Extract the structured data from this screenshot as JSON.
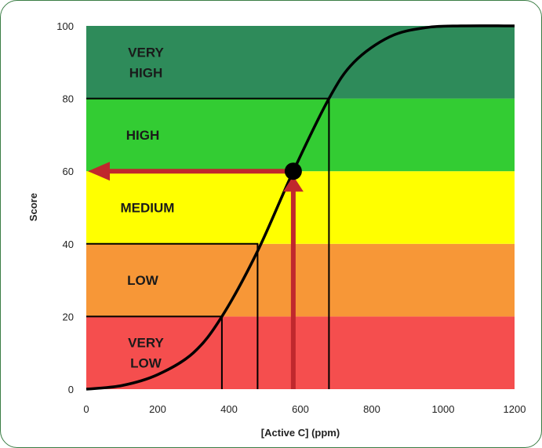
{
  "chart_data": {
    "type": "line",
    "xlabel": "[Active C] (ppm)",
    "ylabel": "Score",
    "xlim": [
      0,
      1200
    ],
    "ylim": [
      0,
      100
    ],
    "x_ticks": [
      0,
      200,
      400,
      600,
      800,
      1000,
      1200
    ],
    "y_ticks": [
      0,
      20,
      40,
      60,
      80,
      100
    ],
    "grid": false,
    "bands": [
      {
        "label": [
          "VERY",
          "LOW"
        ],
        "y0": 0,
        "y1": 20,
        "color": "#f54e4e"
      },
      {
        "label": [
          "LOW"
        ],
        "y0": 20,
        "y1": 40,
        "color": "#f79737"
      },
      {
        "label": [
          "MEDIUM"
        ],
        "y0": 40,
        "y1": 60,
        "color": "#ffff00"
      },
      {
        "label": [
          "HIGH"
        ],
        "y0": 60,
        "y1": 80,
        "color": "#33cc33"
      },
      {
        "label": [
          "VERY",
          "HIGH"
        ],
        "y0": 80,
        "y1": 100,
        "color": "#2e8b5a"
      }
    ],
    "curve": {
      "color": "#000000",
      "x": [
        0,
        100,
        200,
        300,
        380,
        480,
        580,
        680,
        750,
        850,
        950,
        1050,
        1200
      ],
      "y": [
        0,
        1,
        4,
        10,
        20,
        38,
        60,
        80,
        90,
        97,
        99.5,
        100,
        100
      ]
    },
    "threshold_lines": [
      {
        "x": 380,
        "y": 20
      },
      {
        "x": 480,
        "y": 40
      },
      {
        "x": 680,
        "y": 80
      }
    ],
    "highlight_point": {
      "x": 580,
      "y": 60,
      "color": "#000000"
    },
    "arrows": {
      "color": "#c0282d",
      "vertical": {
        "x": 580,
        "from_y": 0,
        "to_y": 60
      },
      "horizontal": {
        "y": 60,
        "from_x": 580,
        "to_x": 0
      }
    }
  }
}
